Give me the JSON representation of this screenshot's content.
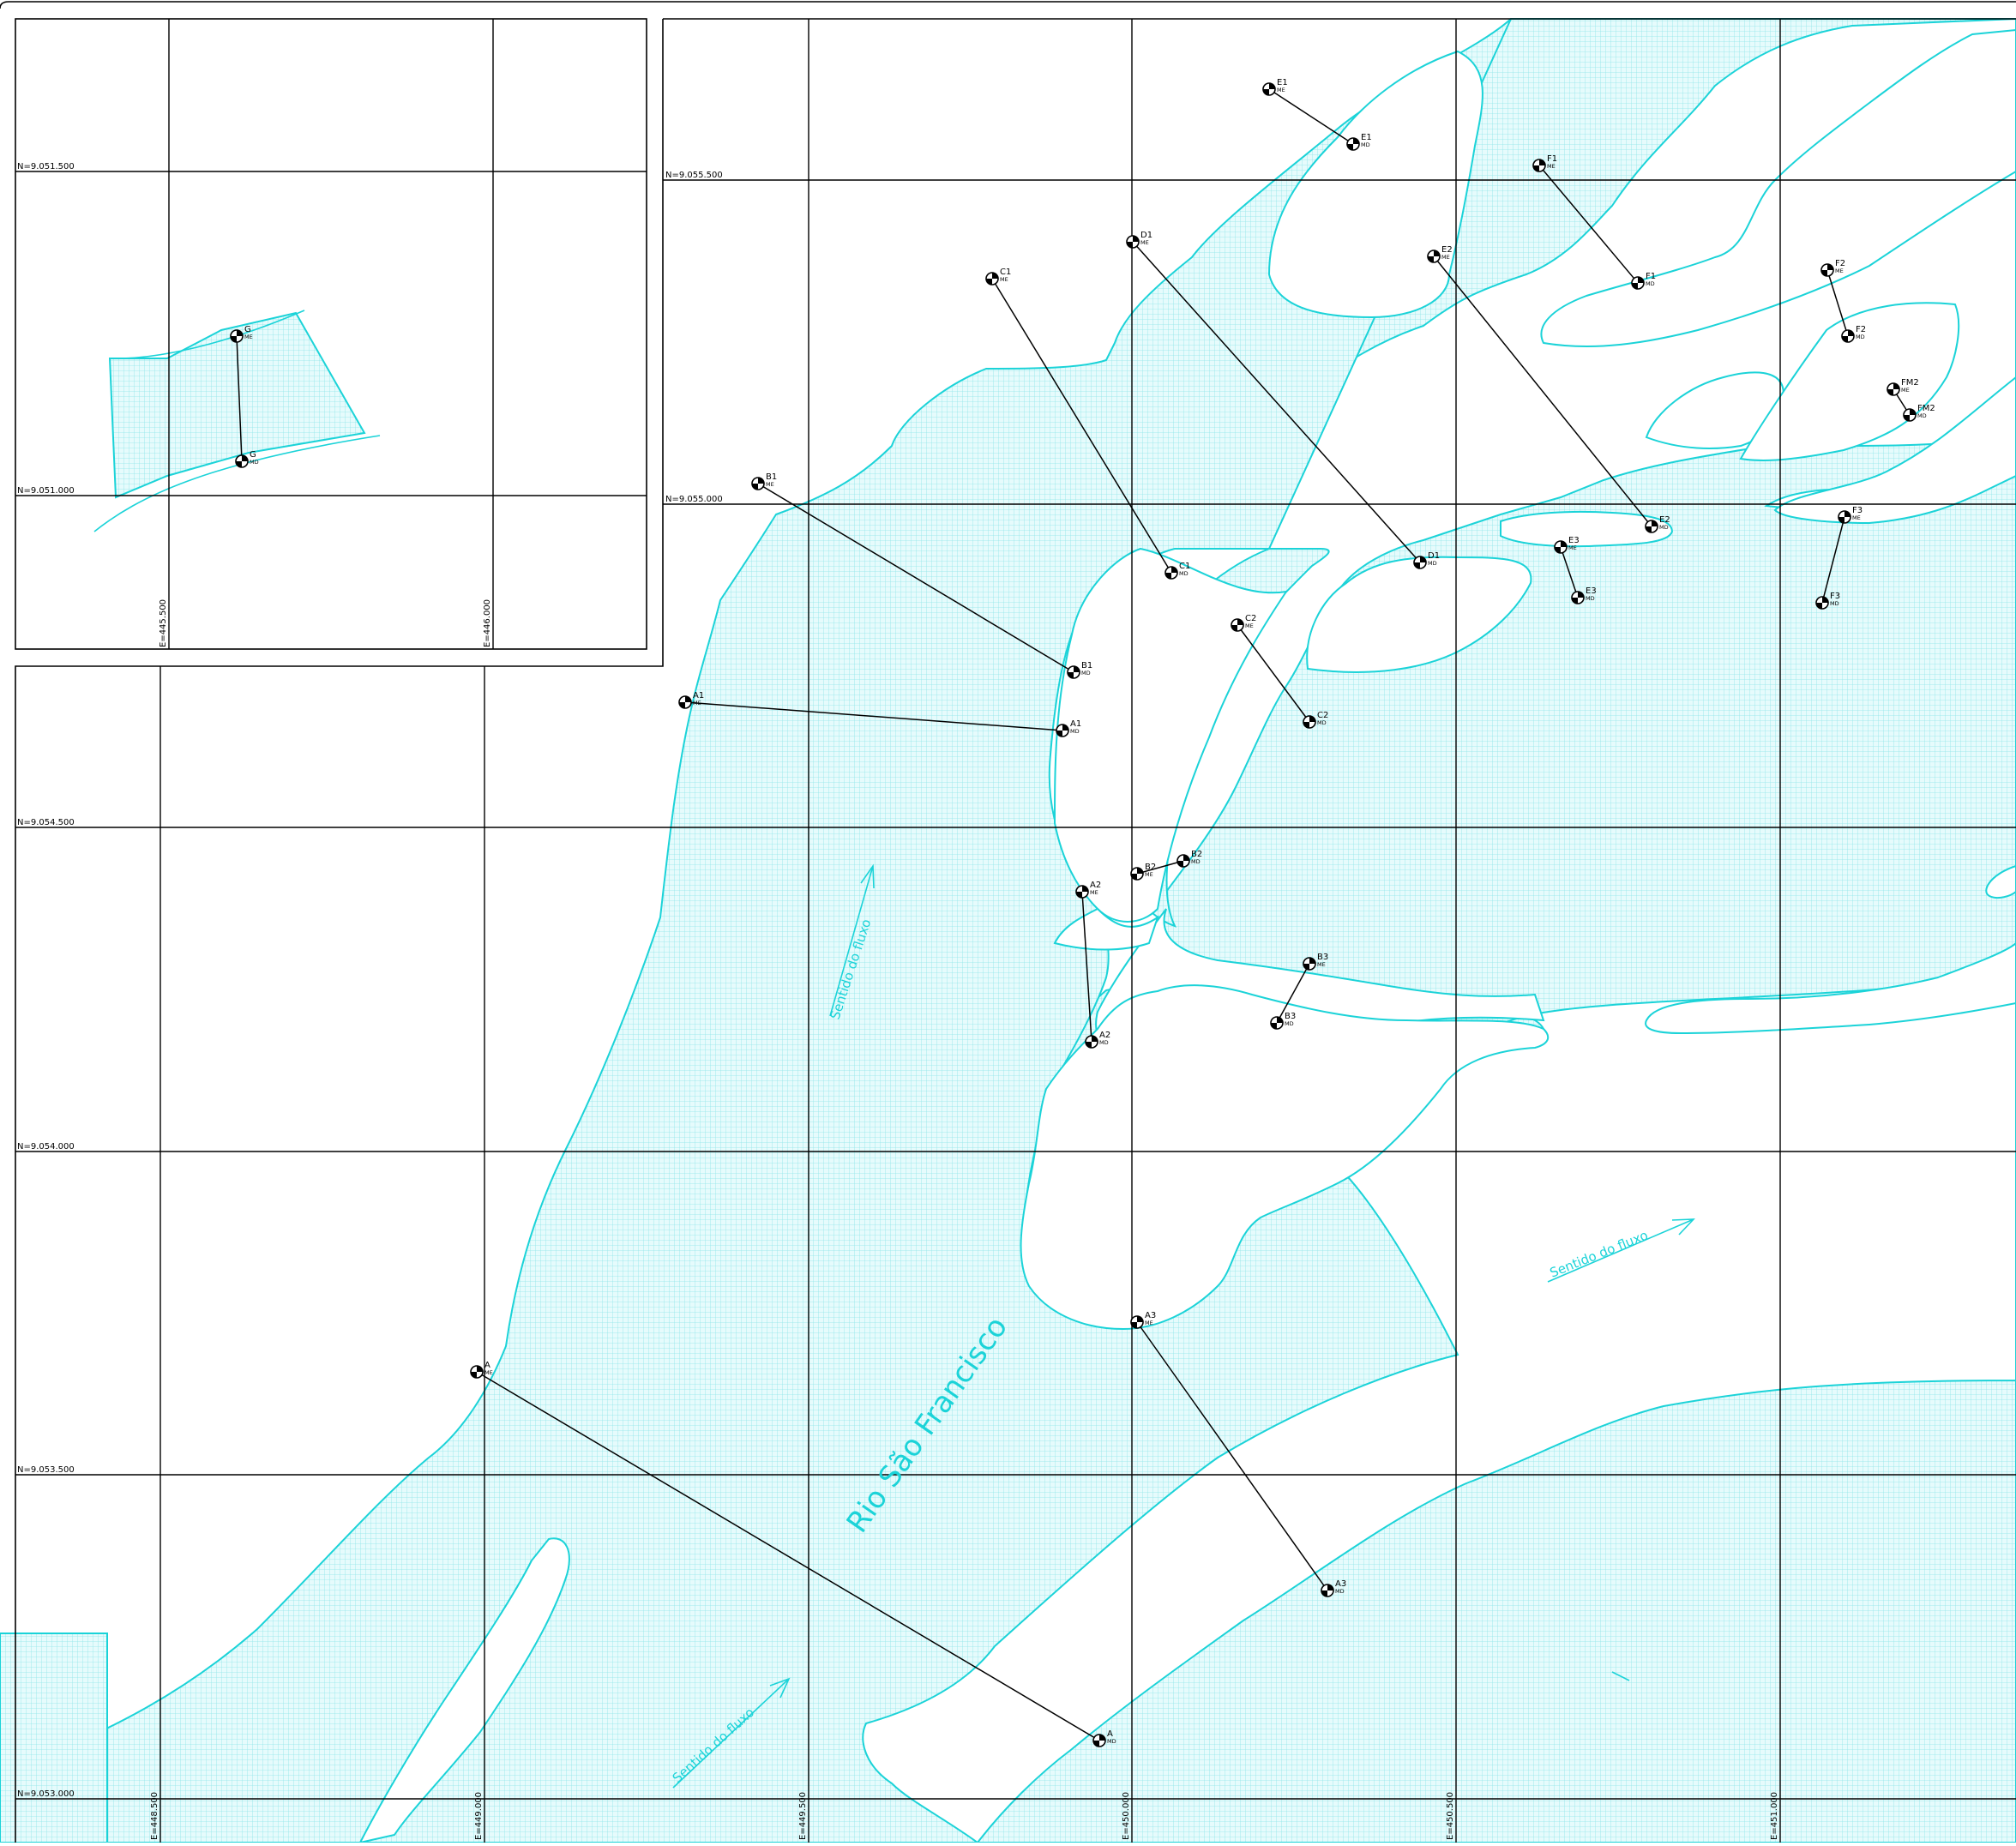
{
  "inset": {
    "northing_labels": [
      "N=9.051.500",
      "N=9.051.000"
    ],
    "easting_labels": [
      "E=445.500",
      "E=446.000"
    ],
    "markers": [
      {
        "label": "G",
        "sub": "ME"
      },
      {
        "label": "G",
        "sub": "MD"
      }
    ]
  },
  "main": {
    "northing_labels_right": [
      "N=9.055.500",
      "N=9.055.000"
    ],
    "northing_labels_left": [
      "N=9.054.500",
      "N=9.054.000",
      "N=9.053.500",
      "N=9.053.000"
    ],
    "easting_labels": [
      "E=448.500",
      "E=449.000",
      "E=449.500",
      "E=450.000",
      "E=450.500",
      "E=451.000"
    ],
    "river_name": "Rio São Francisco",
    "flow_labels": [
      "Sentido do fluxo",
      "Sentido do fluxo",
      "Sentido do fluxo"
    ],
    "markers": [
      {
        "label": "A",
        "sub": "ME"
      },
      {
        "label": "A",
        "sub": "MD"
      },
      {
        "label": "A1",
        "sub": "ME"
      },
      {
        "label": "A1",
        "sub": "MD"
      },
      {
        "label": "A2",
        "sub": "ME"
      },
      {
        "label": "A2",
        "sub": "MD"
      },
      {
        "label": "A3",
        "sub": "ME"
      },
      {
        "label": "A3",
        "sub": "MD"
      },
      {
        "label": "B1",
        "sub": "ME"
      },
      {
        "label": "B1",
        "sub": "MD"
      },
      {
        "label": "B2",
        "sub": "ME"
      },
      {
        "label": "B2",
        "sub": "MD"
      },
      {
        "label": "B3",
        "sub": "ME"
      },
      {
        "label": "B3",
        "sub": "MD"
      },
      {
        "label": "C1",
        "sub": "ME"
      },
      {
        "label": "C1",
        "sub": "MD"
      },
      {
        "label": "C2",
        "sub": "ME"
      },
      {
        "label": "C2",
        "sub": "MD"
      },
      {
        "label": "D1",
        "sub": "ME"
      },
      {
        "label": "D1",
        "sub": "MD"
      },
      {
        "label": "E1",
        "sub": "ME"
      },
      {
        "label": "E1",
        "sub": "MD"
      },
      {
        "label": "E2",
        "sub": "ME"
      },
      {
        "label": "E2",
        "sub": "MD"
      },
      {
        "label": "E3",
        "sub": "ME"
      },
      {
        "label": "E3",
        "sub": "MD"
      },
      {
        "label": "F1",
        "sub": "ME"
      },
      {
        "label": "F1",
        "sub": "MD"
      },
      {
        "label": "F2",
        "sub": "ME"
      },
      {
        "label": "F2",
        "sub": "MD"
      },
      {
        "label": "F3",
        "sub": "ME"
      },
      {
        "label": "F3",
        "sub": "MD"
      },
      {
        "label": "FM2",
        "sub": "ME"
      },
      {
        "label": "FM2",
        "sub": "MD"
      }
    ]
  },
  "colors": {
    "water_outline": "#1bd3d8",
    "water_fill": "#c9f4f6",
    "grid": "#000000"
  }
}
